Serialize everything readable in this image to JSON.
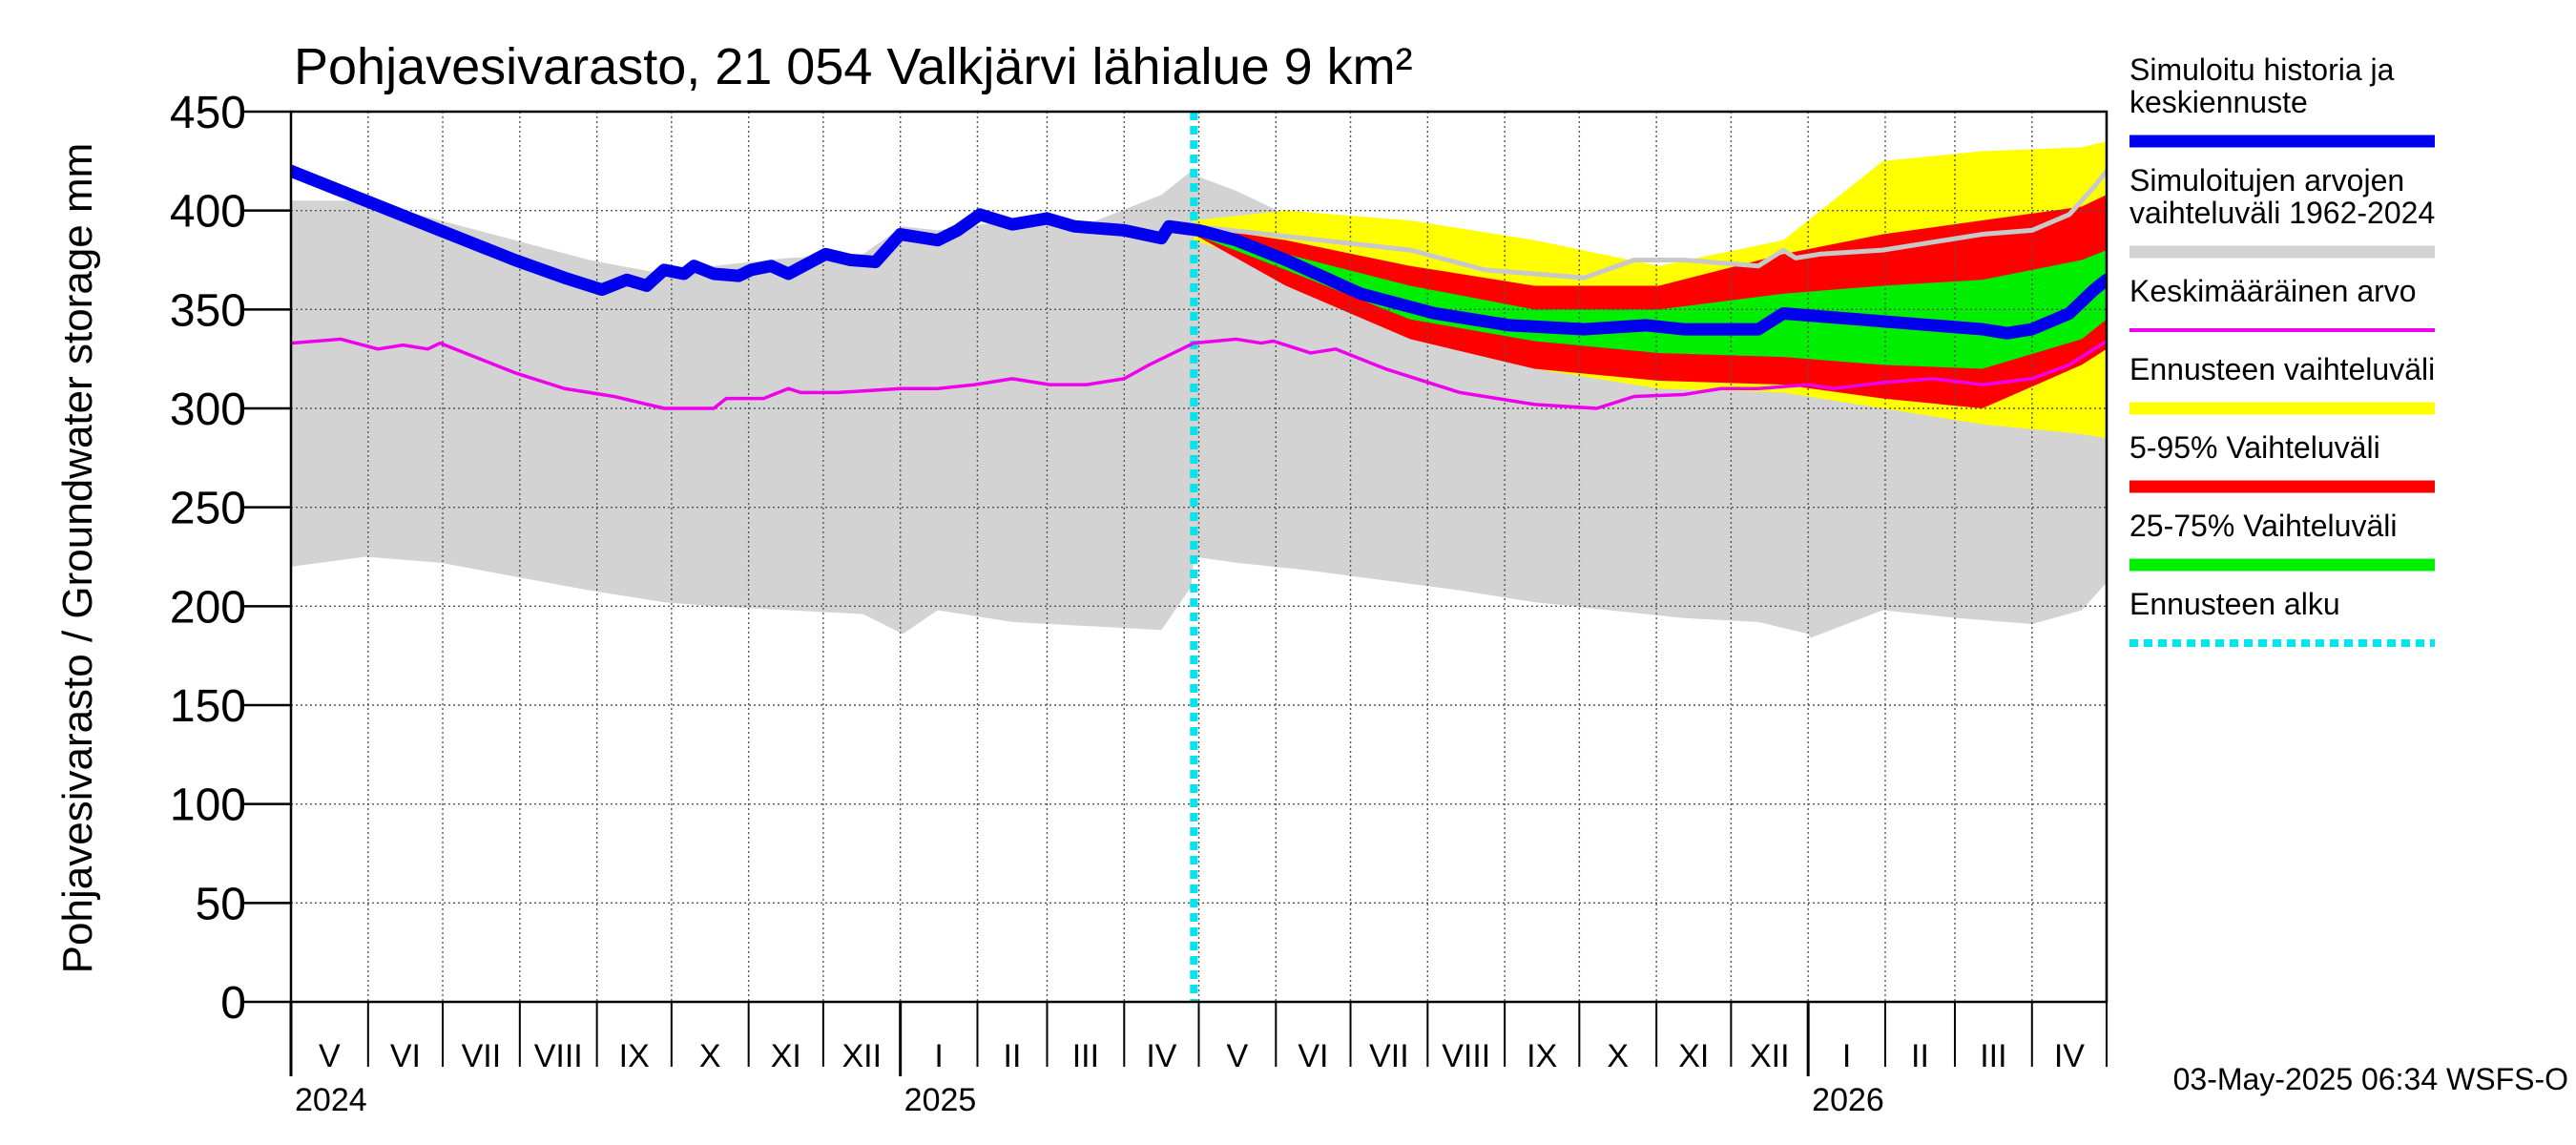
{
  "colors": {
    "history_band": "#d3d3d3",
    "forecast_band": "#ffff00",
    "band_5_95": "#ff0000",
    "band_25_75": "#00ee00",
    "simulated": "#0000ee",
    "mean": "#ee00ee",
    "forecast_start": "#00e5ee",
    "upper_sim_line": "#c8c8c8"
  },
  "chart_data": {
    "type": "area",
    "title": "Pohjavesivarasto, 21 054 Valkjärvi lähialue 9 km²",
    "ylabel": "Pohjavesivarasto / Groundwater storage   mm",
    "ylim": [
      0,
      450
    ],
    "yticks": [
      "0",
      "50",
      "100",
      "150",
      "200",
      "250",
      "300",
      "350",
      "400",
      "450"
    ],
    "xlim_days": [
      0,
      730
    ],
    "grid": true,
    "forecast_start_day": 363,
    "months": [
      {
        "label": "V",
        "start": 0,
        "end": 31
      },
      {
        "label": "VI",
        "start": 31,
        "end": 61
      },
      {
        "label": "VII",
        "start": 61,
        "end": 92
      },
      {
        "label": "VIII",
        "start": 92,
        "end": 123
      },
      {
        "label": "IX",
        "start": 123,
        "end": 153
      },
      {
        "label": "X",
        "start": 153,
        "end": 184
      },
      {
        "label": "XI",
        "start": 184,
        "end": 214
      },
      {
        "label": "XII",
        "start": 214,
        "end": 245
      },
      {
        "label": "I",
        "start": 245,
        "end": 276
      },
      {
        "label": "II",
        "start": 276,
        "end": 304
      },
      {
        "label": "III",
        "start": 304,
        "end": 335
      },
      {
        "label": "IV",
        "start": 335,
        "end": 365
      },
      {
        "label": "V",
        "start": 365,
        "end": 396
      },
      {
        "label": "VI",
        "start": 396,
        "end": 426
      },
      {
        "label": "VII",
        "start": 426,
        "end": 457
      },
      {
        "label": "VIII",
        "start": 457,
        "end": 488
      },
      {
        "label": "IX",
        "start": 488,
        "end": 518
      },
      {
        "label": "X",
        "start": 518,
        "end": 549
      },
      {
        "label": "XI",
        "start": 549,
        "end": 579
      },
      {
        "label": "XII",
        "start": 579,
        "end": 610
      },
      {
        "label": "I",
        "start": 610,
        "end": 641
      },
      {
        "label": "II",
        "start": 641,
        "end": 669
      },
      {
        "label": "III",
        "start": 669,
        "end": 700
      },
      {
        "label": "IV",
        "start": 700,
        "end": 730
      }
    ],
    "years": [
      {
        "label": "2024",
        "day": 0
      },
      {
        "label": "2025",
        "day": 245
      },
      {
        "label": "2026",
        "day": 610
      }
    ],
    "series": [
      {
        "name": "Simuloitujen arvojen vaihteluväli 1962-2024",
        "kind": "band",
        "x": [
          0,
          30,
          60,
          90,
          120,
          150,
          170,
          200,
          230,
          246,
          260,
          290,
          320,
          350,
          362,
          363,
          380,
          410,
          440,
          470,
          500,
          530,
          545,
          560,
          590,
          610,
          611,
          640,
          670,
          700,
          720,
          730
        ],
        "upper": [
          405,
          405,
          395,
          385,
          375,
          368,
          372,
          376,
          378,
          392,
          390,
          395,
          393,
          408,
          420,
          418,
          410,
          392,
          378,
          368,
          362,
          358,
          364,
          368,
          372,
          386,
          384,
          388,
          392,
          398,
          408,
          412
        ],
        "lower": [
          220,
          225,
          222,
          215,
          208,
          202,
          200,
          198,
          196,
          186,
          198,
          192,
          190,
          188,
          210,
          225,
          222,
          218,
          213,
          208,
          202,
          198,
          196,
          194,
          192,
          186,
          184,
          198,
          194,
          191,
          198,
          212
        ]
      },
      {
        "name": "Ennusteen vaihteluväli",
        "kind": "band",
        "x": [
          363,
          400,
          450,
          500,
          550,
          600,
          640,
          680,
          720,
          730
        ],
        "upper": [
          395,
          400,
          395,
          385,
          372,
          385,
          425,
          430,
          432,
          435
        ],
        "lower": [
          385,
          370,
          345,
          320,
          310,
          308,
          300,
          292,
          287,
          285
        ]
      },
      {
        "name": "5-95% Vaihteluväli",
        "kind": "band",
        "x": [
          363,
          400,
          450,
          500,
          550,
          600,
          640,
          680,
          720,
          730
        ],
        "upper": [
          392,
          385,
          372,
          362,
          362,
          378,
          388,
          395,
          402,
          408
        ],
        "lower": [
          388,
          362,
          335,
          320,
          314,
          312,
          305,
          300,
          322,
          330
        ]
      },
      {
        "name": "25-75% Vaihteluväli",
        "kind": "band",
        "x": [
          363,
          400,
          450,
          500,
          550,
          600,
          640,
          680,
          720,
          730
        ],
        "upper": [
          390,
          378,
          362,
          350,
          350,
          358,
          362,
          365,
          375,
          380
        ],
        "lower": [
          388,
          370,
          345,
          334,
          328,
          326,
          322,
          320,
          335,
          345
        ]
      },
      {
        "name": "Simuloitu historia ja keskiennuste",
        "kind": "line",
        "x": [
          0,
          30,
          60,
          90,
          110,
          125,
          135,
          143,
          150,
          158,
          162,
          170,
          180,
          185,
          193,
          200,
          215,
          225,
          235,
          245,
          260,
          268,
          277,
          290,
          304,
          315,
          335,
          350,
          353,
          365,
          380,
          400,
          430,
          460,
          490,
          520,
          545,
          560,
          590,
          600,
          630,
          660,
          680,
          690,
          700,
          715,
          725,
          730
        ],
        "values": [
          420,
          405,
          390,
          375,
          366,
          360,
          365,
          362,
          370,
          368,
          372,
          368,
          367,
          370,
          372,
          368,
          378,
          375,
          374,
          388,
          385,
          390,
          398,
          393,
          396,
          392,
          390,
          386,
          392,
          390,
          385,
          375,
          358,
          348,
          342,
          340,
          342,
          340,
          340,
          348,
          345,
          342,
          340,
          338,
          340,
          348,
          360,
          365
        ]
      },
      {
        "name": "Keskimääräinen arvo",
        "kind": "line",
        "x": [
          0,
          20,
          35,
          45,
          55,
          60,
          70,
          90,
          110,
          130,
          150,
          170,
          175,
          190,
          200,
          205,
          220,
          245,
          260,
          275,
          290,
          305,
          320,
          335,
          345,
          363,
          380,
          390,
          395,
          410,
          420,
          440,
          470,
          500,
          525,
          540,
          560,
          575,
          590,
          610,
          620,
          640,
          660,
          680,
          700,
          715,
          730
        ],
        "values": [
          333,
          335,
          330,
          332,
          330,
          333,
          328,
          318,
          310,
          306,
          300,
          300,
          305,
          305,
          310,
          308,
          308,
          310,
          310,
          312,
          315,
          312,
          312,
          315,
          322,
          333,
          335,
          333,
          334,
          328,
          330,
          320,
          308,
          302,
          300,
          306,
          307,
          310,
          310,
          312,
          310,
          313,
          315,
          312,
          315,
          322,
          334
        ]
      },
      {
        "name": "Simulated upper line",
        "kind": "line",
        "x": [
          363,
          400,
          450,
          480,
          520,
          540,
          560,
          590,
          600,
          605,
          615,
          640,
          660,
          680,
          700,
          715,
          725,
          730
        ],
        "values": [
          392,
          387,
          380,
          370,
          366,
          375,
          375,
          372,
          380,
          376,
          378,
          380,
          384,
          388,
          390,
          398,
          412,
          420
        ]
      }
    ],
    "legend": {
      "position": "right",
      "entries": [
        {
          "label_lines": [
            "Simuloitu historia ja",
            "keskiennuste"
          ],
          "color": "#0000ee",
          "style": "thick"
        },
        {
          "label_lines": [
            "Simuloitujen arvojen",
            "vaihteluväli 1962-2024"
          ],
          "color": "#d3d3d3",
          "style": "thick"
        },
        {
          "label_lines": [
            "Keskimääräinen arvo"
          ],
          "color": "#ee00ee",
          "style": "thin"
        },
        {
          "label_lines": [
            "Ennusteen vaihteluväli"
          ],
          "color": "#ffff00",
          "style": "thick"
        },
        {
          "label_lines": [
            "5-95% Vaihteluväli"
          ],
          "color": "#ff0000",
          "style": "thick"
        },
        {
          "label_lines": [
            "25-75% Vaihteluväli"
          ],
          "color": "#00ee00",
          "style": "thick"
        },
        {
          "label_lines": [
            "Ennusteen alku"
          ],
          "color": "#00e5ee",
          "style": "dotted"
        }
      ]
    },
    "timestamp": "03-May-2025 06:34 WSFS-O"
  }
}
